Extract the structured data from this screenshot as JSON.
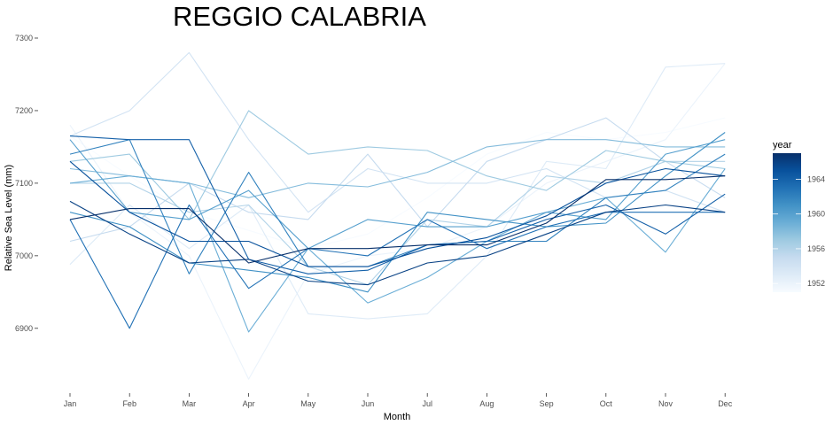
{
  "chart_data": {
    "type": "line",
    "title": "REGGIO CALABRIA",
    "xlabel": "Month",
    "ylabel": "Relative Sea Level (mm)",
    "categories": [
      "Jan",
      "Feb",
      "Mar",
      "Apr",
      "May",
      "Jun",
      "Jul",
      "Aug",
      "Sep",
      "Oct",
      "Nov",
      "Dec"
    ],
    "ylim": [
      6820,
      7300
    ],
    "yticks": [
      6900,
      7000,
      7100,
      7200,
      7300
    ],
    "grid": false,
    "legend": {
      "title": "year",
      "position": "right",
      "type": "colorbar",
      "range": [
        1951,
        1967
      ],
      "breaks": [
        1952,
        1956,
        1960,
        1964
      ],
      "colors": [
        "#f7fbff",
        "#deebf7",
        "#c6dbef",
        "#9ecae1",
        "#6baed6",
        "#4292c6",
        "#2171b5",
        "#08519c",
        "#08306b"
      ]
    },
    "series": [
      {
        "year": 1951,
        "values": [
          7165,
          7110,
          7060,
          7035,
          7010,
          7030,
          7080,
          7140,
          7170,
          7160,
          7170,
          7190
        ]
      },
      {
        "year": 1952,
        "values": [
          7180,
          7060,
          7000,
          6830,
          6975,
          7000,
          7010,
          7040,
          7100,
          7130,
          7160,
          7265
        ]
      },
      {
        "year": 1953,
        "values": [
          6988,
          7070,
          7010,
          7070,
          6920,
          6913,
          6920,
          7000,
          7130,
          7120,
          7260,
          7265
        ]
      },
      {
        "year": 1954,
        "values": [
          7165,
          7200,
          7280,
          7160,
          7060,
          7120,
          7100,
          7100,
          7120,
          7080,
          7090,
          7060
        ]
      },
      {
        "year": 1955,
        "values": [
          7020,
          7040,
          7100,
          7060,
          7050,
          7140,
          7040,
          7130,
          7160,
          7190,
          7130,
          7080
        ]
      },
      {
        "year": 1956,
        "values": [
          7100,
          7100,
          7060,
          7070,
          6985,
          6960,
          7050,
          7040,
          7110,
          7100,
          7130,
          7130
        ]
      },
      {
        "year": 1957,
        "values": [
          7130,
          7140,
          7050,
          7200,
          7140,
          7150,
          7145,
          7110,
          7090,
          7145,
          7130,
          7120
        ]
      },
      {
        "year": 1958,
        "values": [
          7120,
          7110,
          7100,
          7080,
          7100,
          7095,
          7115,
          7150,
          7160,
          7160,
          7150,
          7150
        ]
      },
      {
        "year": 1959,
        "values": [
          7100,
          7110,
          7100,
          6895,
          7010,
          6935,
          6970,
          7020,
          7060,
          7080,
          7005,
          7120
        ]
      },
      {
        "year": 1960,
        "values": [
          7160,
          7060,
          7050,
          7090,
          7010,
          7050,
          7040,
          7040,
          7060,
          7050,
          7140,
          7160
        ]
      },
      {
        "year": 1961,
        "values": [
          7060,
          7040,
          6990,
          6980,
          6970,
          6950,
          7060,
          7050,
          7040,
          7045,
          7110,
          7170
        ]
      },
      {
        "year": 1962,
        "values": [
          7140,
          7160,
          6975,
          7115,
          6985,
          6985,
          7015,
          7020,
          7020,
          7080,
          7090,
          7140
        ]
      },
      {
        "year": 1963,
        "values": [
          7050,
          6900,
          7070,
          6955,
          7010,
          7000,
          7050,
          7010,
          7040,
          7060,
          7060,
          7060
        ]
      },
      {
        "year": 1964,
        "values": [
          7165,
          7160,
          7160,
          6995,
          6975,
          6980,
          7015,
          7020,
          7050,
          7070,
          7030,
          7085
        ]
      },
      {
        "year": 1965,
        "values": [
          7130,
          7060,
          7020,
          7020,
          6985,
          6985,
          7010,
          7025,
          7055,
          7100,
          7120,
          7110
        ]
      },
      {
        "year": 1966,
        "values": [
          7075,
          7030,
          6990,
          6995,
          6965,
          6960,
          6990,
          7000,
          7030,
          7060,
          7070,
          7060
        ]
      },
      {
        "year": 1967,
        "values": [
          7050,
          7065,
          7065,
          6990,
          7010,
          7010,
          7015,
          7015,
          7045,
          7105,
          7105,
          7110
        ]
      }
    ]
  }
}
